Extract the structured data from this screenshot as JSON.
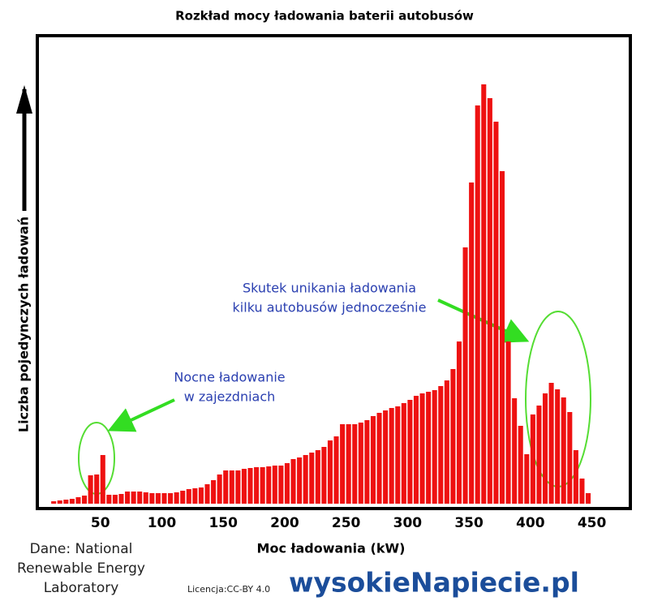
{
  "chart_data": {
    "type": "histogram",
    "title": "Rozkład mocy ładowania baterii autobusów",
    "x_label": "Moc ładowania (kW)",
    "y_label": "Liczba pojedynczych ładowań",
    "bins": [
      10,
      15,
      20,
      25,
      30,
      35,
      40,
      45,
      50,
      55,
      60,
      65,
      70,
      75,
      80,
      85,
      90,
      95,
      100,
      105,
      110,
      115,
      120,
      125,
      130,
      135,
      140,
      145,
      150,
      155,
      160,
      165,
      170,
      175,
      180,
      185,
      190,
      195,
      200,
      205,
      210,
      215,
      220,
      225,
      230,
      235,
      240,
      245,
      250,
      255,
      260,
      265,
      270,
      275,
      280,
      285,
      290,
      295,
      300,
      305,
      310,
      315,
      320,
      325,
      330,
      335,
      340,
      345,
      350,
      355,
      360,
      365,
      370,
      375,
      380,
      385,
      390,
      395,
      400,
      405,
      410,
      415,
      420,
      425,
      430,
      435,
      440,
      445,
      450
    ],
    "counts": [
      3,
      4,
      5,
      6,
      8,
      10,
      35,
      36,
      60,
      11,
      11,
      12,
      15,
      15,
      15,
      14,
      13,
      13,
      13,
      13,
      14,
      16,
      18,
      19,
      20,
      24,
      29,
      36,
      41,
      41,
      41,
      43,
      44,
      45,
      45,
      46,
      47,
      47,
      50,
      55,
      57,
      60,
      63,
      66,
      70,
      78,
      83,
      98,
      98,
      98,
      100,
      103,
      108,
      112,
      115,
      118,
      120,
      124,
      128,
      133,
      136,
      138,
      140,
      145,
      152,
      166,
      200,
      316,
      396,
      491,
      517,
      500,
      471,
      410,
      200,
      130,
      96,
      61,
      110,
      121,
      136,
      149,
      141,
      131,
      113,
      66,
      31,
      13
    ],
    "color": "#ee1111",
    "xlim": [
      0,
      480
    ],
    "ylim": [
      0,
      575
    ],
    "xticks": [
      50,
      100,
      150,
      200,
      250,
      300,
      350,
      400,
      450
    ],
    "annotations": [
      {
        "lines": [
          "Nocne ładowanie",
          "w zajezdniach"
        ]
      },
      {
        "lines": [
          "Skutek unikania ładowania",
          "kilku autobusów jednocześnie"
        ]
      }
    ]
  },
  "footer": {
    "source": [
      "Dane: National",
      "Renewable Energy",
      "Laboratory"
    ],
    "license": "Licencja:CC-BY 4.0",
    "logo": "wysokieNapiecie.pl"
  }
}
